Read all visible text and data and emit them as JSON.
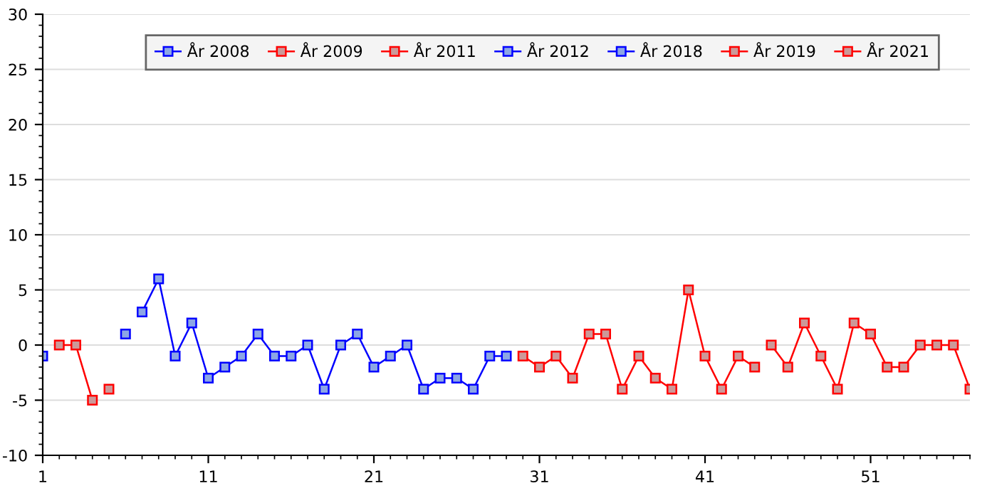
{
  "chart_data": {
    "type": "line",
    "marker": "square",
    "line_style": "solid",
    "grid": "y",
    "legend": "top right",
    "xlim": [
      1,
      57
    ],
    "xticks": [
      1,
      11,
      21,
      31,
      41,
      51
    ],
    "ylim": [
      -10,
      30
    ],
    "yticks": [
      -10,
      -5,
      0,
      5,
      10,
      15,
      20,
      25,
      30
    ],
    "series": [
      {
        "name": "År 2008",
        "color": "#0000ff",
        "x": [
          1
        ],
        "values": [
          -1
        ]
      },
      {
        "name": "År 2009",
        "color": "#ff0000",
        "x": [
          2,
          3,
          4
        ],
        "values": [
          0,
          0,
          -5
        ]
      },
      {
        "name": "År 2011",
        "color": "#ff0000",
        "x": [
          5
        ],
        "values": [
          -4
        ]
      },
      {
        "name": "År 2012",
        "color": "#0000ff",
        "x": [
          6
        ],
        "values": [
          1
        ]
      },
      {
        "name": "År 2018",
        "color": "#0000ff",
        "x": [
          7,
          8,
          9,
          10,
          11,
          12,
          13,
          14,
          15,
          16,
          17,
          18,
          19,
          20,
          21,
          22,
          23,
          24,
          25,
          26,
          27,
          28,
          29
        ],
        "values": [
          3,
          6,
          -1,
          2,
          -3,
          -2,
          -1,
          1,
          -1,
          -1,
          0,
          -4,
          0,
          1,
          -2,
          -1,
          0,
          -4,
          -3,
          -3,
          -4,
          -1,
          -1
        ]
      },
      {
        "name": "År 2019",
        "color": "#ff0000",
        "x": [
          30,
          31,
          32,
          33,
          34,
          35,
          36,
          37,
          38,
          39,
          40,
          41,
          42,
          43,
          44
        ],
        "values": [
          -1,
          -2,
          -1,
          -3,
          1,
          1,
          -4,
          -1,
          -3,
          -4,
          5,
          -1,
          -4,
          -1,
          -2
        ]
      },
      {
        "name": "År 2021",
        "color": "#ff0000",
        "x": [
          45,
          46,
          47,
          48,
          49,
          50,
          51,
          52,
          53,
          54,
          55,
          56,
          57
        ],
        "values": [
          0,
          -2,
          2,
          -1,
          -4,
          2,
          1,
          -2,
          -2,
          0,
          0,
          0,
          -4
        ]
      }
    ]
  }
}
